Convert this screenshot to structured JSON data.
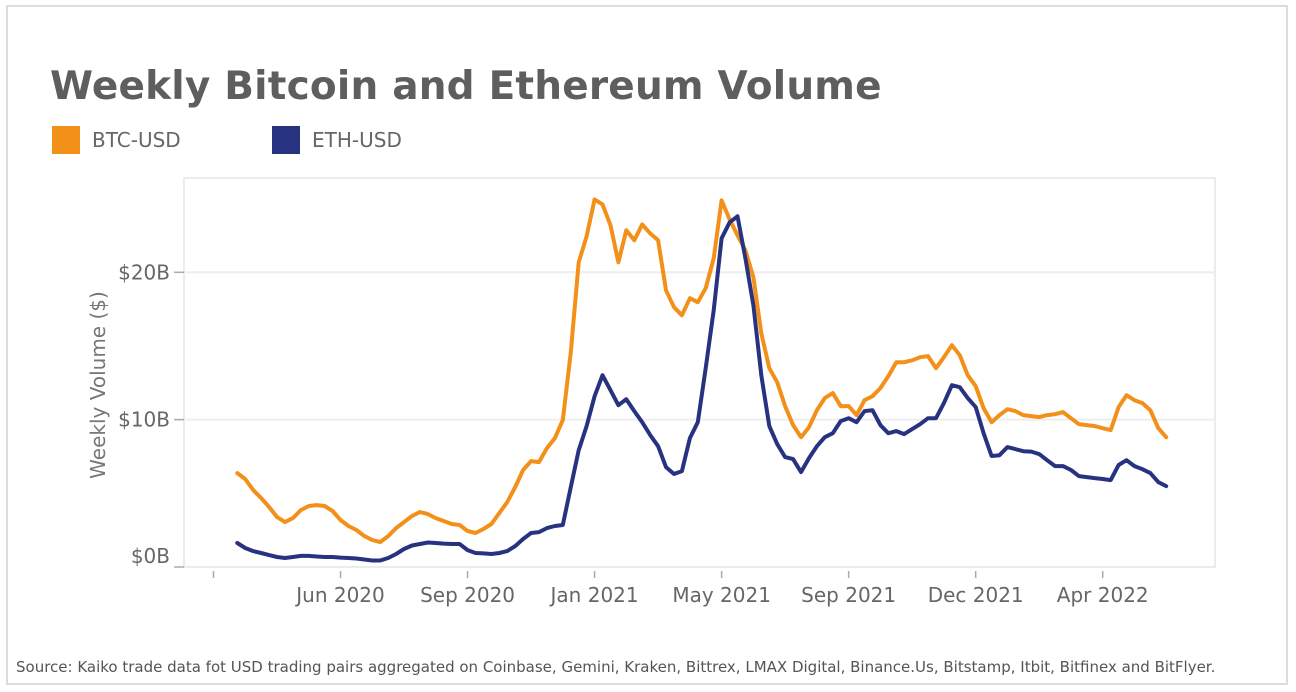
{
  "title": "Weekly Bitcoin and Ethereum Volume",
  "source": "Source: Kaiko trade data fot USD trading pairs aggregated on Coinbase, Gemini, Kraken, Bittrex, LMAX Digital, Binance.Us, Bitstamp, Itbit, Bitfinex and BitFlyer.",
  "chart_data": {
    "type": "line",
    "title": "Weekly Bitcoin and Ethereum Volume",
    "xlabel": "",
    "ylabel": "Weekly Volume ($)",
    "xlim": [
      "2020-01-21",
      "2022-07-18"
    ],
    "ylim": [
      0,
      26.4
    ],
    "grid": "horizontal",
    "legend_position": "top-left",
    "y_ticks": [
      {
        "value": 0,
        "label": "$0B"
      },
      {
        "value": 10,
        "label": "$10B"
      },
      {
        "value": 20,
        "label": "$20B"
      }
    ],
    "x_ticks": [
      {
        "date": "2020-02-16",
        "label": ""
      },
      {
        "date": "2020-06-07",
        "label": "Jun 2020"
      },
      {
        "date": "2020-09-27",
        "label": "Sep 2020"
      },
      {
        "date": "2021-01-17",
        "label": "Jan 2021"
      },
      {
        "date": "2021-05-09",
        "label": "May 2021"
      },
      {
        "date": "2021-08-29",
        "label": "Sep 2021"
      },
      {
        "date": "2021-12-19",
        "label": "Dec 2021"
      },
      {
        "date": "2022-04-10",
        "label": "Apr 2022"
      }
    ],
    "x": [
      "2020-03-08",
      "2020-03-15",
      "2020-03-22",
      "2020-03-29",
      "2020-04-05",
      "2020-04-12",
      "2020-04-19",
      "2020-04-26",
      "2020-05-03",
      "2020-05-10",
      "2020-05-17",
      "2020-05-24",
      "2020-05-31",
      "2020-06-07",
      "2020-06-14",
      "2020-06-21",
      "2020-06-28",
      "2020-07-05",
      "2020-07-12",
      "2020-07-19",
      "2020-07-26",
      "2020-08-02",
      "2020-08-09",
      "2020-08-16",
      "2020-08-23",
      "2020-08-30",
      "2020-09-06",
      "2020-09-13",
      "2020-09-20",
      "2020-09-27",
      "2020-10-04",
      "2020-10-11",
      "2020-10-18",
      "2020-10-25",
      "2020-11-01",
      "2020-11-08",
      "2020-11-15",
      "2020-11-22",
      "2020-11-29",
      "2020-12-06",
      "2020-12-13",
      "2020-12-20",
      "2020-12-27",
      "2021-01-03",
      "2021-01-10",
      "2021-01-17",
      "2021-01-24",
      "2021-01-31",
      "2021-02-07",
      "2021-02-14",
      "2021-02-21",
      "2021-02-28",
      "2021-03-07",
      "2021-03-14",
      "2021-03-21",
      "2021-03-28",
      "2021-04-04",
      "2021-04-11",
      "2021-04-18",
      "2021-04-25",
      "2021-05-02",
      "2021-05-09",
      "2021-05-16",
      "2021-05-23",
      "2021-05-30",
      "2021-06-06",
      "2021-06-13",
      "2021-06-20",
      "2021-06-27",
      "2021-07-04",
      "2021-07-11",
      "2021-07-18",
      "2021-07-25",
      "2021-08-01",
      "2021-08-08",
      "2021-08-15",
      "2021-08-22",
      "2021-08-29",
      "2021-09-05",
      "2021-09-12",
      "2021-09-19",
      "2021-09-26",
      "2021-10-03",
      "2021-10-10",
      "2021-10-17",
      "2021-10-24",
      "2021-10-31",
      "2021-11-07",
      "2021-11-14",
      "2021-11-21",
      "2021-11-28",
      "2021-12-05",
      "2021-12-12",
      "2021-12-19",
      "2021-12-26",
      "2022-01-02",
      "2022-01-09",
      "2022-01-16",
      "2022-01-23",
      "2022-01-30",
      "2022-02-06",
      "2022-02-13",
      "2022-02-20",
      "2022-02-27",
      "2022-03-06",
      "2022-03-13",
      "2022-03-20",
      "2022-03-27",
      "2022-04-03",
      "2022-04-10",
      "2022-04-17",
      "2022-04-24",
      "2022-05-01",
      "2022-05-08",
      "2022-05-15",
      "2022-05-22",
      "2022-05-29",
      "2022-06-05"
    ],
    "series": [
      {
        "name": "BTC-USD",
        "color": "#F39019",
        "values": [
          6.37,
          5.97,
          5.22,
          4.68,
          4.07,
          3.39,
          3.05,
          3.32,
          3.86,
          4.14,
          4.2,
          4.14,
          3.8,
          3.19,
          2.78,
          2.51,
          2.1,
          1.83,
          1.69,
          2.1,
          2.64,
          3.05,
          3.46,
          3.73,
          3.59,
          3.32,
          3.12,
          2.92,
          2.85,
          2.44,
          2.31,
          2.58,
          2.92,
          3.66,
          4.41,
          5.42,
          6.58,
          7.19,
          7.12,
          8.07,
          8.75,
          9.97,
          14.58,
          20.68,
          22.44,
          24.95,
          24.61,
          23.19,
          20.68,
          22.85,
          22.17,
          23.25,
          22.64,
          22.17,
          18.78,
          17.63,
          17.08,
          18.24,
          17.97,
          18.92,
          20.95,
          24.88,
          23.59,
          22.51,
          21.49,
          19.66,
          15.86,
          13.49,
          12.54,
          10.92,
          9.63,
          8.81,
          9.49,
          10.64,
          11.46,
          11.8,
          10.92,
          10.92,
          10.31,
          11.32,
          11.59,
          12.14,
          12.95,
          13.9,
          13.9,
          14.03,
          14.24,
          14.31,
          13.49,
          14.24,
          15.05,
          14.37,
          13.02,
          12.27,
          10.78,
          9.83,
          10.31,
          10.71,
          10.58,
          10.31,
          10.24,
          10.17,
          10.31,
          10.37,
          10.51,
          10.1,
          9.69,
          9.63,
          9.56,
          9.42,
          9.29,
          10.85,
          11.66,
          11.32,
          11.12,
          10.64,
          9.42,
          8.81
        ]
      },
      {
        "name": "ETH-USD",
        "color": "#273381",
        "values": [
          1.63,
          1.29,
          1.08,
          0.95,
          0.81,
          0.68,
          0.61,
          0.68,
          0.75,
          0.75,
          0.71,
          0.68,
          0.68,
          0.64,
          0.61,
          0.58,
          0.51,
          0.44,
          0.44,
          0.61,
          0.88,
          1.22,
          1.46,
          1.56,
          1.66,
          1.63,
          1.59,
          1.56,
          1.56,
          1.15,
          0.95,
          0.92,
          0.88,
          0.95,
          1.08,
          1.42,
          1.9,
          2.31,
          2.37,
          2.64,
          2.78,
          2.85,
          5.42,
          7.93,
          9.56,
          11.59,
          13.02,
          12.0,
          10.98,
          11.39,
          10.58,
          9.83,
          8.95,
          8.2,
          6.78,
          6.31,
          6.51,
          8.75,
          9.83,
          13.49,
          17.42,
          22.31,
          23.39,
          23.8,
          20.95,
          17.76,
          13.02,
          9.56,
          8.34,
          7.46,
          7.32,
          6.44,
          7.39,
          8.2,
          8.81,
          9.08,
          9.9,
          10.1,
          9.83,
          10.58,
          10.64,
          9.63,
          9.08,
          9.22,
          9.02,
          9.36,
          9.69,
          10.1,
          10.1,
          11.12,
          12.34,
          12.2,
          11.46,
          10.85,
          9.08,
          7.53,
          7.59,
          8.14,
          8.0,
          7.86,
          7.83,
          7.66,
          7.25,
          6.85,
          6.85,
          6.58,
          6.17,
          6.1,
          6.03,
          5.97,
          5.9,
          6.92,
          7.25,
          6.85,
          6.64,
          6.37,
          5.76,
          5.49
        ]
      }
    ]
  }
}
